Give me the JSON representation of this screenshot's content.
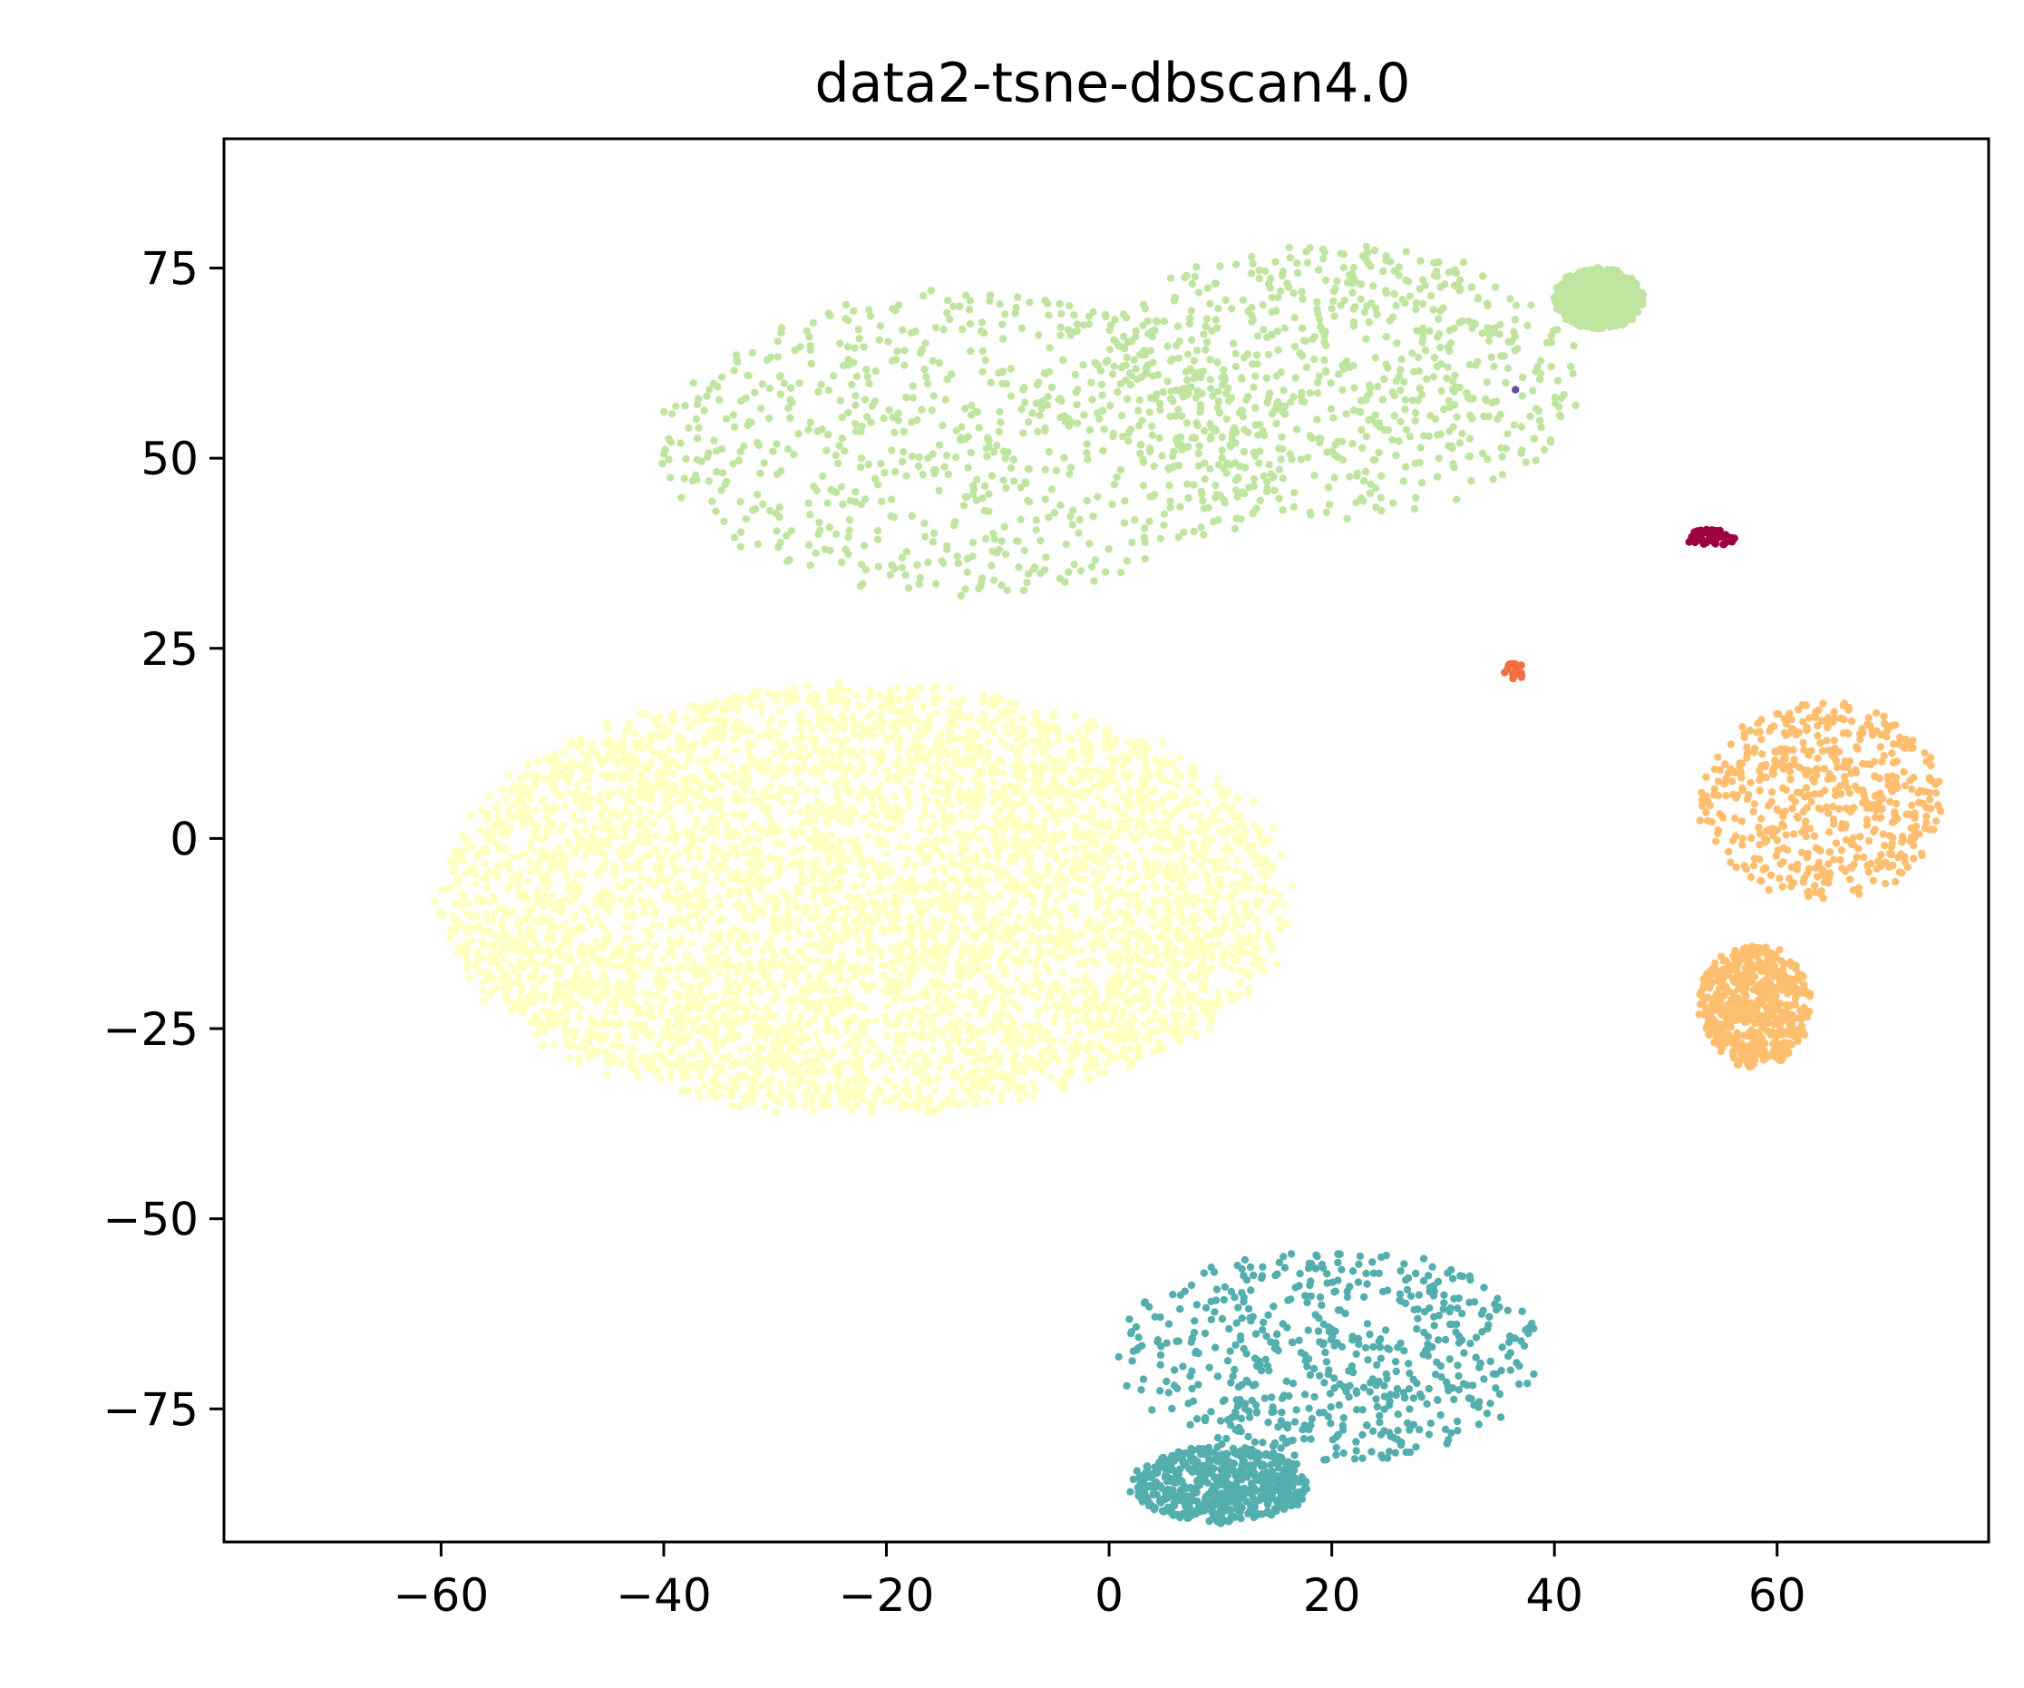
{
  "chart_data": {
    "type": "scatter",
    "title": "data2-tsne-dbscan4.0",
    "xlabel": "",
    "ylabel": "",
    "xlim": [
      -79.5,
      79
    ],
    "ylim": [
      -92.5,
      92
    ],
    "xticks": [
      -60,
      -40,
      -20,
      0,
      20,
      40,
      60
    ],
    "yticks": [
      -75,
      -50,
      -25,
      0,
      25,
      50,
      75
    ],
    "xtick_labels": [
      "−60",
      "−40",
      "−20",
      "0",
      "20",
      "40",
      "60"
    ],
    "ytick_labels": [
      "−75",
      "−50",
      "−25",
      "0",
      "25",
      "50",
      "75"
    ],
    "grid": false,
    "legend": "none",
    "clusters": [
      {
        "color": "#ffffbf",
        "count": 5200,
        "blobs": [
          [
            -22,
            -8,
            38,
            28
          ]
        ],
        "seed": 11
      },
      {
        "color": "#bfe5a0",
        "count": 2100,
        "blobs": [
          [
            -12,
            52,
            28,
            20
          ],
          [
            20,
            60,
            22,
            18
          ],
          [
            44,
            71,
            4,
            4
          ]
        ],
        "seed": 23
      },
      {
        "color": "#54aead",
        "count": 1150,
        "blobs": [
          [
            20,
            -68,
            19,
            14
          ],
          [
            10,
            -85,
            8,
            5
          ]
        ],
        "seed": 37
      },
      {
        "color": "#fdbf6f",
        "count": 1050,
        "blobs": [
          [
            64,
            5,
            11,
            13
          ],
          [
            58,
            -22,
            5,
            8
          ]
        ],
        "seed": 41
      },
      {
        "color": "#9e0142",
        "count": 55,
        "blobs": [
          [
            54,
            39.5,
            2.2,
            1.2
          ]
        ],
        "seed": 53
      },
      {
        "color": "#f46d43",
        "count": 18,
        "blobs": [
          [
            36.5,
            22,
            1,
            1.2
          ]
        ],
        "seed": 59
      },
      {
        "color": "#5e4fa2",
        "count": 1,
        "blobs": [
          [
            36.5,
            59,
            0,
            0
          ]
        ],
        "seed": 61
      }
    ]
  }
}
